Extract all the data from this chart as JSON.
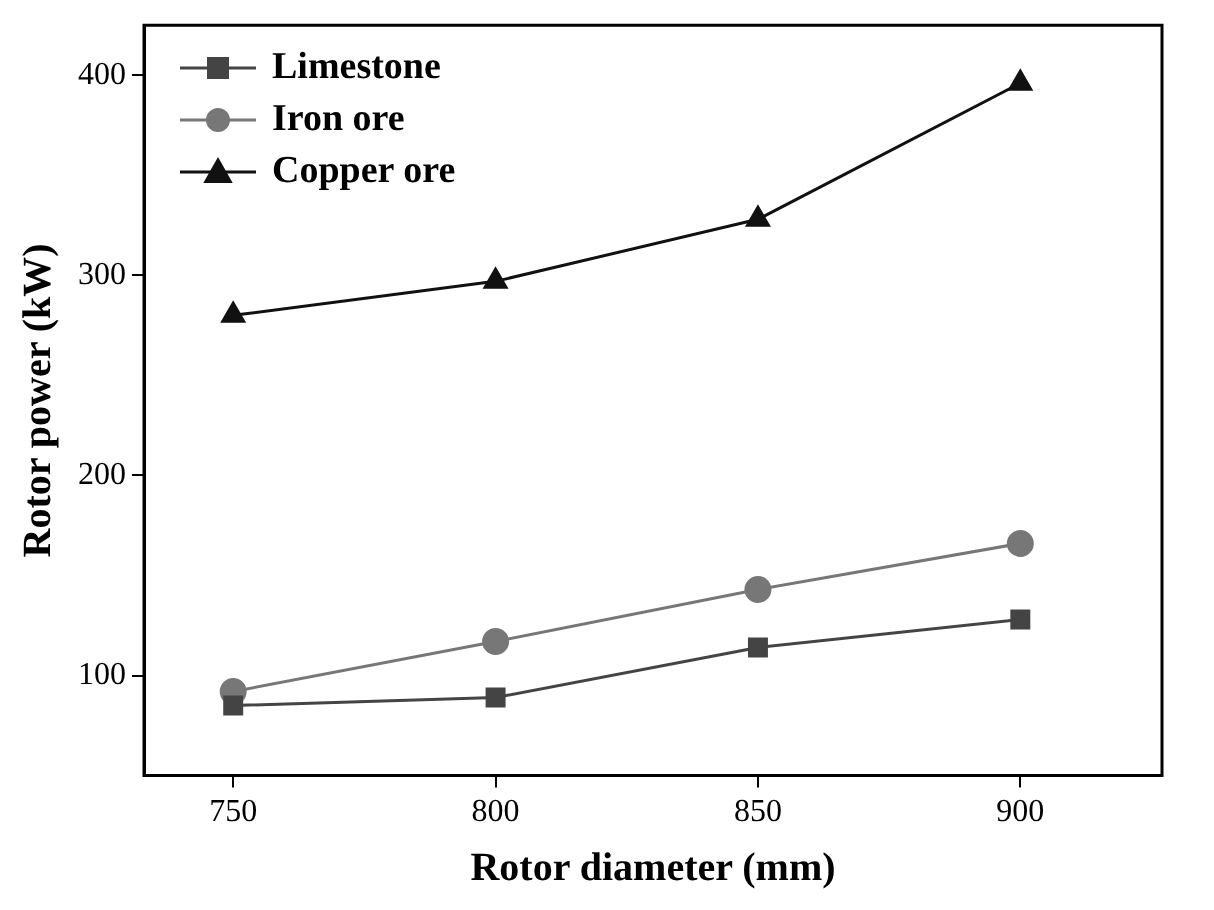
{
  "chart_data": {
    "type": "line",
    "xlabel": "Rotor diameter (mm)",
    "ylabel": "Rotor power (kW)",
    "x": [
      750,
      800,
      850,
      900
    ],
    "xlim": [
      733,
      927
    ],
    "xticks": [
      750,
      800,
      850,
      900
    ],
    "ylim": [
      50,
      425
    ],
    "yticks": [
      100,
      200,
      300,
      400
    ],
    "grid": false,
    "legend": "top left",
    "line_style": "solid",
    "series": [
      {
        "name": "Limestone",
        "color": "#444444",
        "marker": "square",
        "values": [
          85,
          89,
          114,
          128
        ]
      },
      {
        "name": "Iron ore",
        "color": "#777777",
        "marker": "circle",
        "values": [
          92,
          117,
          143,
          166
        ]
      },
      {
        "name": "Copper ore",
        "color": "#111111",
        "marker": "triangle",
        "values": [
          280,
          297,
          328,
          396
        ]
      }
    ]
  }
}
